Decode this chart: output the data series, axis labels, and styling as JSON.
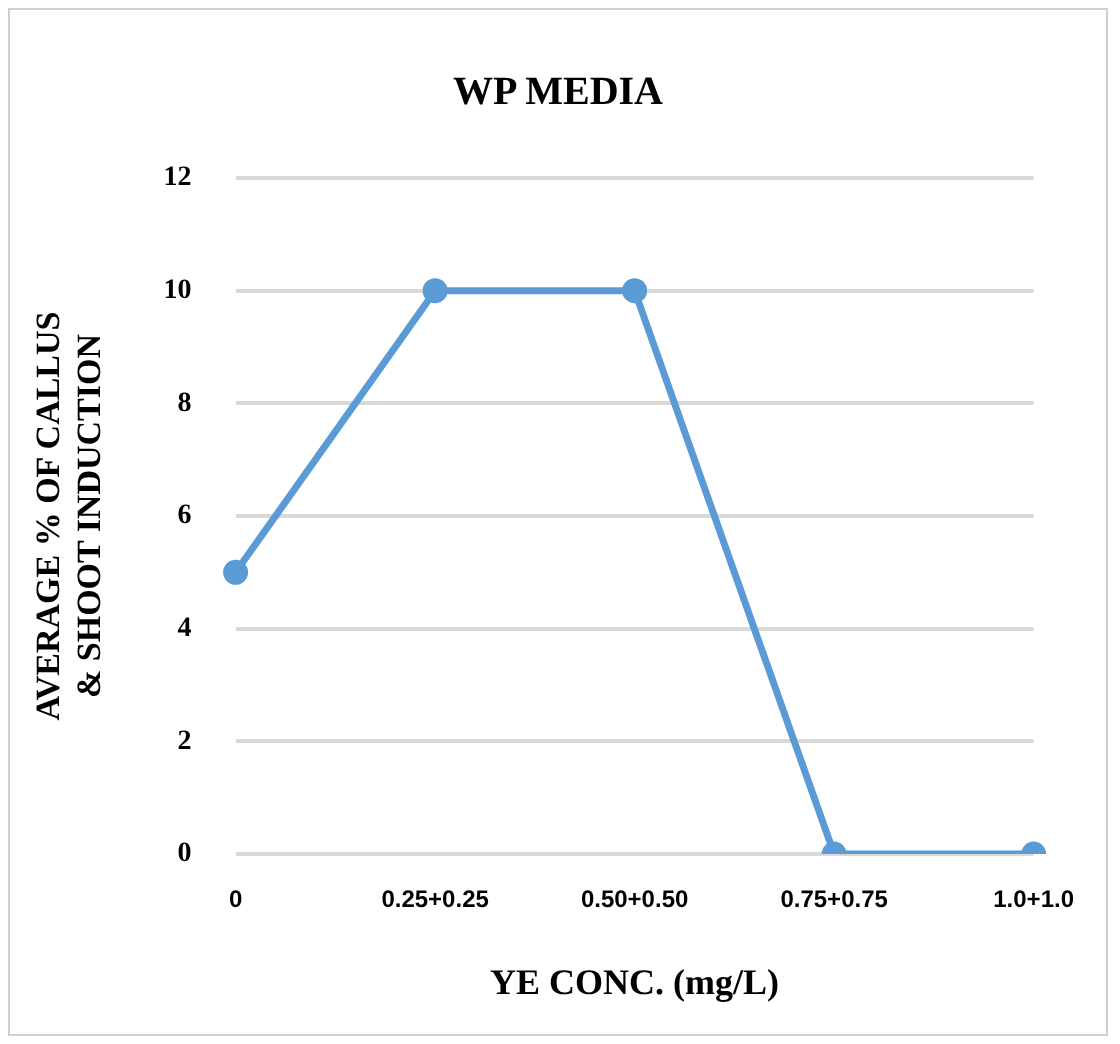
{
  "chart_data": {
    "type": "line",
    "title": "WP MEDIA",
    "xlabel": "YE CONC. (mg/L)",
    "ylabel": "AVERAGE % OF CALLUS & SHOOT INDUCTION",
    "categories": [
      "0",
      "0.25+0.25",
      "0.50+0.50",
      "0.75+0.75",
      "1.0+1.0"
    ],
    "series": [
      {
        "color": "#5b9bd5",
        "values": [
          5,
          10,
          10,
          0,
          0
        ]
      }
    ],
    "ylim": [
      0,
      12
    ],
    "yticks": [
      0,
      2,
      4,
      6,
      8,
      10,
      12
    ],
    "grid": "y",
    "legend": false,
    "marker": "circle",
    "line_style": "solid"
  }
}
